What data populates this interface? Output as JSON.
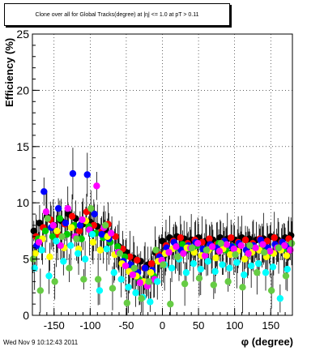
{
  "title": "Clone  over all for Global Tracks(degree) at |η| <= 1.0 at pT > 0.11",
  "timestamp": "Wed Nov  9 10:12:43 2011",
  "chart_data": {
    "type": "scatter",
    "title": "Clone  over all for Global Tracks(degree) at |η| <= 1.0 at pT > 0.11",
    "xlabel": "φ (degree)",
    "ylabel": "Efficiency (%)",
    "xlim": [
      -180,
      180
    ],
    "ylim": [
      0,
      25
    ],
    "xticks": [
      -150,
      -100,
      -50,
      0,
      50,
      100,
      150
    ],
    "yticks": [
      0,
      5,
      10,
      15,
      20,
      25
    ],
    "grid": true,
    "legend": "none",
    "colors": [
      "#000000",
      "#ff0000",
      "#00cc00",
      "#0000ff",
      "#ffff00",
      "#ff00ff",
      "#00ffff",
      "#66cc44"
    ],
    "series": [
      {
        "color": "#000000",
        "x": [
          -178,
          -170,
          -160,
          -150,
          -140,
          -130,
          -120,
          -110,
          -100,
          -90,
          -80,
          -70,
          -60,
          -50,
          -40,
          -30,
          -20,
          -10,
          0,
          10,
          20,
          30,
          40,
          50,
          60,
          70,
          80,
          90,
          100,
          110,
          120,
          130,
          140,
          150,
          160,
          170,
          178
        ],
        "y": [
          7.5,
          8.2,
          8.8,
          8.0,
          8.4,
          9.0,
          8.6,
          8.1,
          8.3,
          7.9,
          7.6,
          7.2,
          6.1,
          5.6,
          5.1,
          4.8,
          4.5,
          5.6,
          6.6,
          6.9,
          7.0,
          6.8,
          6.7,
          6.9,
          6.6,
          6.7,
          6.9,
          6.8,
          6.7,
          6.9,
          6.8,
          6.7,
          6.8,
          7.0,
          6.7,
          6.9,
          7.1
        ]
      },
      {
        "color": "#ff0000",
        "x": [
          -175,
          -165,
          -155,
          -145,
          -135,
          -125,
          -115,
          -105,
          -95,
          -85,
          -75,
          -65,
          -55,
          -45,
          -35,
          -25,
          -15,
          -5,
          5,
          15,
          25,
          35,
          45,
          55,
          65,
          75,
          85,
          95,
          105,
          115,
          125,
          135,
          145,
          155,
          165,
          175
        ],
        "y": [
          7.0,
          7.8,
          8.5,
          7.2,
          8.1,
          8.8,
          7.5,
          9.2,
          8.0,
          7.4,
          8.1,
          7.0,
          5.9,
          5.2,
          4.9,
          4.2,
          4.6,
          5.4,
          6.2,
          6.6,
          6.9,
          6.4,
          6.7,
          6.5,
          6.8,
          6.3,
          6.6,
          6.9,
          6.5,
          6.7,
          6.4,
          6.8,
          6.6,
          6.9,
          6.5,
          6.8
        ]
      },
      {
        "color": "#00cc00",
        "x": [
          -172,
          -162,
          -152,
          -142,
          -132,
          -122,
          -112,
          -102,
          -92,
          -82,
          -72,
          -62,
          -52,
          -42,
          -32,
          -22,
          -12,
          -2,
          8,
          18,
          28,
          38,
          48,
          58,
          68,
          78,
          88,
          98,
          108,
          118,
          128,
          138,
          148,
          158,
          168,
          176
        ],
        "y": [
          6.8,
          7.5,
          7.0,
          8.6,
          7.2,
          8.0,
          6.8,
          7.9,
          7.3,
          6.9,
          6.5,
          6.1,
          5.2,
          4.0,
          3.2,
          2.8,
          3.5,
          5.0,
          5.8,
          6.0,
          6.3,
          5.9,
          6.2,
          5.7,
          6.0,
          6.4,
          5.8,
          6.1,
          6.3,
          5.6,
          6.0,
          6.2,
          5.5,
          6.1,
          5.9,
          6.2
        ]
      },
      {
        "color": "#0000ff",
        "x": [
          -174,
          -164,
          -154,
          -144,
          -134,
          -124,
          -114,
          -104,
          -94,
          -84,
          -74,
          -64,
          -54,
          -44,
          -34,
          -24,
          -14,
          -4,
          6,
          16,
          26,
          36,
          46,
          56,
          66,
          76,
          86,
          96,
          106,
          116,
          126,
          136,
          146,
          156,
          166,
          174
        ],
        "y": [
          6.2,
          11.0,
          7.8,
          9.5,
          8.2,
          12.6,
          8.0,
          12.5,
          9.0,
          7.2,
          6.8,
          5.5,
          4.8,
          4.5,
          3.8,
          4.2,
          4.0,
          5.2,
          6.0,
          6.5,
          5.8,
          6.2,
          6.5,
          5.9,
          6.3,
          6.0,
          6.6,
          6.1,
          6.4,
          5.8,
          6.2,
          6.7,
          6.0,
          6.3,
          6.5,
          6.1
        ]
      },
      {
        "color": "#ffff00",
        "x": [
          -176,
          -166,
          -156,
          -146,
          -136,
          -126,
          -116,
          -106,
          -96,
          -86,
          -76,
          -66,
          -56,
          -46,
          -36,
          -26,
          -16,
          -6,
          4,
          14,
          24,
          34,
          44,
          54,
          64,
          74,
          84,
          94,
          104,
          114,
          124,
          134,
          144,
          154,
          164,
          172
        ],
        "y": [
          5.5,
          6.8,
          5.2,
          7.5,
          6.0,
          7.8,
          5.9,
          8.4,
          6.5,
          5.8,
          7.0,
          5.4,
          4.6,
          3.9,
          3.5,
          3.0,
          3.8,
          4.8,
          5.5,
          5.9,
          5.2,
          6.0,
          5.6,
          5.3,
          5.8,
          5.1,
          5.9,
          5.4,
          5.7,
          5.0,
          5.6,
          5.8,
          5.2,
          5.5,
          5.8,
          5.3
        ]
      },
      {
        "color": "#ff00ff",
        "x": [
          -171,
          -161,
          -151,
          -141,
          -131,
          -121,
          -111,
          -101,
          -91,
          -81,
          -71,
          -61,
          -51,
          -41,
          -31,
          -21,
          -11,
          -1,
          9,
          19,
          29,
          39,
          49,
          59,
          69,
          79,
          89,
          99,
          109,
          119,
          129,
          139,
          149,
          159,
          169,
          177
        ],
        "y": [
          6.5,
          9.2,
          8.0,
          6.2,
          9.5,
          7.0,
          8.5,
          7.6,
          11.5,
          7.8,
          7.3,
          5.6,
          4.4,
          3.6,
          2.9,
          2.6,
          3.2,
          4.9,
          5.6,
          6.1,
          5.5,
          6.0,
          6.4,
          5.3,
          6.1,
          5.7,
          6.3,
          5.9,
          6.2,
          5.5,
          6.0,
          6.3,
          5.7,
          6.0,
          6.2,
          5.8
        ]
      },
      {
        "color": "#00ffff",
        "x": [
          -177,
          -167,
          -157,
          -147,
          -137,
          -127,
          -117,
          -107,
          -97,
          -87,
          -77,
          -67,
          -57,
          -47,
          -37,
          -27,
          -17,
          -7,
          3,
          13,
          23,
          33,
          43,
          53,
          63,
          73,
          83,
          93,
          103,
          113,
          123,
          133,
          143,
          153,
          163,
          173
        ],
        "y": [
          4.2,
          5.8,
          3.5,
          6.6,
          4.8,
          6.2,
          5.5,
          5.0,
          7.2,
          2.2,
          5.9,
          3.8,
          3.2,
          2.5,
          2.0,
          1.6,
          1.2,
          3.0,
          4.5,
          4.2,
          5.0,
          3.8,
          4.6,
          4.1,
          4.8,
          3.9,
          4.5,
          4.2,
          4.7,
          3.6,
          4.4,
          4.6,
          3.8,
          4.3,
          1.5,
          4.1
        ]
      },
      {
        "color": "#66cc44",
        "x": [
          -179,
          -169,
          -159,
          -149,
          -139,
          -129,
          -119,
          -109,
          -99,
          -89,
          -79,
          -69,
          -59,
          -49,
          -39,
          -29,
          -19,
          -9,
          1,
          11,
          21,
          31,
          41,
          51,
          61,
          71,
          81,
          91,
          101,
          111,
          121,
          131,
          141,
          151,
          161,
          171,
          179
        ],
        "y": [
          5.0,
          2.2,
          8.6,
          3.0,
          7.0,
          4.2,
          6.8,
          3.2,
          9.5,
          3.2,
          8.0,
          2.4,
          5.5,
          1.1,
          4.2,
          1.5,
          3.0,
          5.8,
          4.5,
          1.0,
          5.2,
          2.8,
          6.0,
          3.3,
          5.8,
          2.7,
          6.4,
          3.0,
          5.4,
          2.5,
          6.2,
          3.8,
          5.6,
          2.2,
          6.0,
          3.5,
          6.4
        ]
      }
    ]
  }
}
